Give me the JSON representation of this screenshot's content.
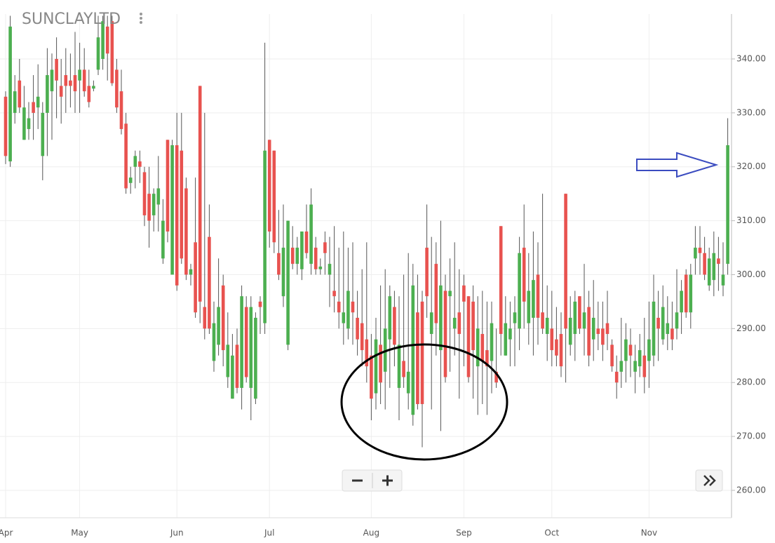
{
  "chart_data": {
    "type": "candlestick",
    "title": "SUNCLAYLTD",
    "categories": [
      "Apr",
      null,
      null,
      null,
      null,
      null,
      null,
      null,
      null,
      null,
      null,
      null,
      null,
      null,
      null,
      null,
      "May",
      null,
      null,
      null,
      null,
      null,
      null,
      null,
      null,
      null,
      null,
      null,
      null,
      null,
      null,
      null,
      null,
      null,
      null,
      null,
      null,
      "Jun",
      null,
      null,
      null,
      null,
      null,
      null,
      null,
      null,
      null,
      null,
      null,
      null,
      null,
      null,
      null,
      null,
      null,
      null,
      null,
      "Jul",
      null,
      null,
      null,
      null,
      null,
      null,
      null,
      null,
      null,
      null,
      null,
      null,
      null,
      null,
      null,
      null,
      null,
      null,
      null,
      null,
      null,
      "Aug",
      null,
      null,
      null,
      null,
      null,
      null,
      null,
      null,
      null,
      null,
      null,
      null,
      null,
      null,
      null,
      null,
      null,
      null,
      null,
      "Sep",
      null,
      null,
      null,
      null,
      null,
      null,
      null,
      null,
      null,
      null,
      null,
      null,
      null,
      null,
      null,
      null,
      null,
      null,
      "Oct",
      null,
      null,
      null,
      null,
      null,
      null,
      null,
      null,
      null,
      null,
      null,
      null,
      null,
      null,
      null,
      null,
      null,
      null,
      null,
      null,
      "Nov",
      null,
      null,
      null,
      null,
      null,
      null,
      null,
      null,
      null,
      null,
      null,
      null,
      null,
      null,
      null,
      null,
      null
    ],
    "ohlc": [
      [
        333,
        334,
        320.5,
        322
      ],
      [
        321,
        348,
        320,
        346
      ],
      [
        330,
        337,
        328,
        334
      ],
      [
        336,
        340,
        330,
        331
      ],
      [
        325,
        335,
        325,
        331
      ],
      [
        327,
        332,
        325,
        329
      ],
      [
        332,
        337,
        325,
        330
      ],
      [
        331,
        339,
        327,
        333
      ],
      [
        322,
        332,
        317.5,
        330
      ],
      [
        330,
        342,
        322,
        337
      ],
      [
        334,
        341,
        325,
        338
      ],
      [
        340,
        344,
        329,
        336
      ],
      [
        335,
        340,
        328,
        333
      ],
      [
        337,
        342,
        330,
        335
      ],
      [
        336,
        341,
        331,
        335
      ],
      [
        337,
        345,
        330,
        334
      ],
      [
        336,
        343,
        330,
        338
      ],
      [
        338,
        342,
        333,
        334
      ],
      [
        335,
        338,
        331,
        332
      ],
      [
        334.5,
        336,
        334,
        335
      ],
      [
        338,
        348,
        337,
        344
      ],
      [
        340,
        348,
        338,
        347
      ],
      [
        346,
        348,
        336,
        341
      ],
      [
        347,
        348,
        335,
        335.5
      ],
      [
        338,
        340,
        330,
        331
      ],
      [
        334,
        338,
        326,
        327
      ],
      [
        328,
        330,
        315,
        316
      ],
      [
        317,
        320,
        315,
        318
      ],
      [
        320,
        323,
        316,
        322
      ],
      [
        321,
        323,
        317,
        320
      ],
      [
        319,
        320,
        309,
        311
      ],
      [
        315,
        320,
        305,
        310
      ],
      [
        311,
        316,
        308,
        315
      ],
      [
        313,
        322,
        308,
        316
      ],
      [
        303,
        314,
        302,
        310
      ],
      [
        325,
        325,
        306,
        308
      ],
      [
        300,
        325,
        300,
        324
      ],
      [
        324,
        330,
        297,
        298
      ],
      [
        323,
        330,
        302,
        303
      ],
      [
        316,
        318,
        299,
        300
      ],
      [
        300,
        302,
        298,
        301
      ],
      [
        306,
        318,
        292,
        293
      ],
      [
        335,
        335,
        291,
        295
      ],
      [
        294,
        330,
        288,
        290
      ],
      [
        307,
        313,
        289,
        290
      ],
      [
        284,
        295,
        282,
        291
      ],
      [
        287,
        303,
        285,
        294
      ],
      [
        298,
        300,
        283,
        286
      ],
      [
        281,
        293,
        279,
        287
      ],
      [
        277,
        289,
        277,
        285
      ],
      [
        287,
        290,
        278,
        279
      ],
      [
        279,
        298,
        275,
        296
      ],
      [
        294,
        296,
        280,
        281
      ],
      [
        279,
        296,
        273,
        294
      ],
      [
        277,
        293,
        276,
        292
      ],
      [
        295,
        296,
        289,
        294
      ],
      [
        291,
        343,
        289,
        323
      ],
      [
        325,
        325,
        305,
        308
      ],
      [
        323,
        323,
        304,
        306
      ],
      [
        304,
        312,
        299,
        300
      ],
      [
        296,
        313,
        294,
        305
      ],
      [
        287,
        310,
        286,
        310
      ],
      [
        305,
        309,
        301,
        302
      ],
      [
        302,
        307,
        300,
        305
      ],
      [
        301,
        308,
        299,
        308
      ],
      [
        308,
        313,
        303,
        304
      ],
      [
        302,
        316,
        300,
        313
      ],
      [
        305,
        307,
        300,
        301
      ],
      [
        301,
        303,
        300,
        301.5
      ],
      [
        306,
        308,
        300,
        304
      ],
      [
        300,
        307,
        294,
        302
      ],
      [
        297,
        309,
        293,
        296
      ],
      [
        295,
        305,
        290,
        293
      ],
      [
        291,
        308,
        287,
        293
      ],
      [
        290,
        305,
        288,
        297
      ],
      [
        295,
        306,
        287,
        293
      ],
      [
        292,
        297,
        285,
        288
      ],
      [
        291,
        301,
        283,
        286
      ],
      [
        288,
        306,
        280,
        283
      ],
      [
        285,
        289,
        273,
        277
      ],
      [
        278,
        292,
        275,
        288
      ],
      [
        287,
        298,
        276,
        280
      ],
      [
        282,
        301,
        275,
        290
      ],
      [
        288,
        298,
        279,
        296
      ],
      [
        294,
        297,
        283,
        287
      ],
      [
        279,
        296,
        273,
        287
      ],
      [
        284,
        300,
        279,
        281
      ],
      [
        278,
        304,
        275,
        282
      ],
      [
        274,
        302,
        272,
        298
      ],
      [
        293,
        300,
        275,
        276
      ],
      [
        295,
        297,
        268,
        276
      ],
      [
        305,
        313,
        292,
        296
      ],
      [
        289,
        307,
        275,
        293
      ],
      [
        302,
        306,
        285,
        291
      ],
      [
        286,
        310,
        271,
        298
      ],
      [
        297,
        300,
        280,
        281
      ],
      [
        296,
        303,
        282,
        297
      ],
      [
        290,
        306,
        285,
        292
      ],
      [
        293,
        301,
        277,
        289
      ],
      [
        298,
        300,
        283,
        295
      ],
      [
        296,
        296,
        280,
        281
      ],
      [
        295,
        298,
        277,
        286
      ],
      [
        283,
        296,
        274,
        290
      ],
      [
        289,
        297,
        276,
        284
      ],
      [
        286,
        295,
        274,
        283
      ],
      [
        284,
        295,
        278,
        291
      ],
      [
        282,
        290,
        279,
        280
      ],
      [
        309,
        309,
        285,
        289
      ],
      [
        285,
        296,
        285,
        291
      ],
      [
        288,
        295,
        283,
        290
      ],
      [
        291,
        296,
        283,
        293
      ],
      [
        290,
        307,
        286,
        304
      ],
      [
        305,
        313,
        290,
        295
      ],
      [
        291,
        304,
        287,
        297
      ],
      [
        292,
        308,
        285,
        299
      ],
      [
        300,
        306,
        287,
        292
      ],
      [
        293,
        315,
        289,
        290
      ],
      [
        289,
        298,
        284,
        292
      ],
      [
        290,
        297,
        283,
        286
      ],
      [
        288,
        294,
        283,
        285
      ],
      [
        289,
        293,
        281,
        283
      ],
      [
        315,
        315,
        280,
        290
      ],
      [
        287,
        296,
        285,
        292
      ],
      [
        289,
        297,
        284,
        295
      ],
      [
        296,
        296,
        289,
        290
      ],
      [
        290,
        302,
        285,
        293
      ],
      [
        294,
        297,
        283,
        285
      ],
      [
        288,
        299,
        284,
        292
      ],
      [
        290,
        295,
        286,
        289
      ],
      [
        290,
        295,
        284,
        287
      ],
      [
        291,
        297,
        286,
        289
      ],
      [
        287,
        288,
        282,
        283
      ],
      [
        282,
        285,
        277,
        280
      ],
      [
        282,
        292,
        279,
        284
      ],
      [
        284,
        291,
        280,
        288
      ],
      [
        287,
        290,
        281,
        285
      ],
      [
        282,
        287,
        278,
        284
      ],
      [
        283,
        289,
        281,
        286
      ],
      [
        285,
        292,
        278,
        281
      ],
      [
        284,
        295,
        279,
        288
      ],
      [
        285,
        300,
        283,
        295
      ],
      [
        292,
        297,
        284,
        290
      ],
      [
        288,
        298,
        287,
        294
      ],
      [
        289,
        296,
        286,
        291
      ],
      [
        290,
        295,
        286,
        288
      ],
      [
        290,
        301,
        288,
        293
      ],
      [
        293,
        299,
        289,
        297
      ],
      [
        300,
        301,
        292,
        293
      ],
      [
        293,
        302,
        290,
        300
      ],
      [
        303,
        309,
        300,
        305
      ],
      [
        305,
        309,
        300,
        304
      ],
      [
        304,
        307,
        299,
        300
      ],
      [
        298,
        305,
        297,
        303
      ],
      [
        299,
        308,
        296,
        304
      ],
      [
        303,
        307,
        297,
        302
      ],
      [
        298,
        306,
        296,
        300
      ],
      [
        302,
        329,
        300,
        324
      ]
    ],
    "up_color": "#4caf50",
    "down_color": "#e8524f",
    "ylim": [
      255,
      348
    ],
    "yticks": [
      {
        "value": 260,
        "label": "260.00"
      },
      {
        "value": 270,
        "label": "270.00"
      },
      {
        "value": 280,
        "label": "280.00"
      },
      {
        "value": 290,
        "label": "290.00"
      },
      {
        "value": 300,
        "label": "300.00"
      },
      {
        "value": 310,
        "label": "310.00"
      },
      {
        "value": 320,
        "label": "320.00"
      },
      {
        "value": 330,
        "label": "330.00"
      },
      {
        "value": 340,
        "label": "340.00"
      }
    ],
    "grid": true
  }
}
